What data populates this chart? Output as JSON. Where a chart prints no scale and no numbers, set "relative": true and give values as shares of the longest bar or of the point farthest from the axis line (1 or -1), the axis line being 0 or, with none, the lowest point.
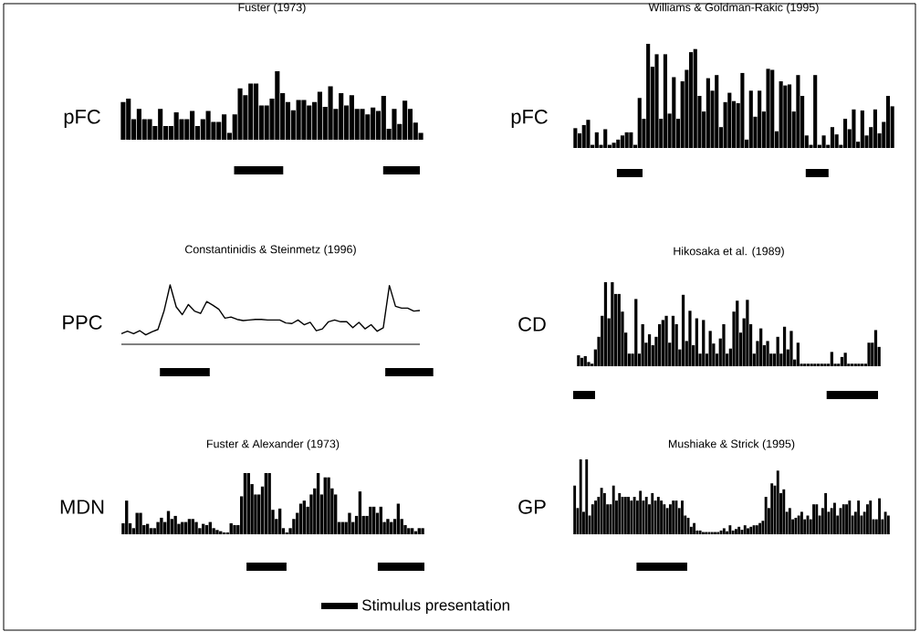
{
  "chart_data": [
    {
      "type": "bar",
      "title": "Fuster (1973)",
      "ylabel": "pFC",
      "relative": true,
      "categories": [
        null,
        null,
        null,
        null,
        null,
        null,
        null,
        null,
        null,
        null,
        null,
        null,
        null,
        null,
        null,
        null,
        null,
        null,
        null,
        null,
        null,
        null,
        null,
        null,
        null,
        null,
        null,
        null,
        null,
        null,
        null,
        null,
        null,
        null,
        null,
        null,
        null,
        null,
        null,
        null,
        null,
        null,
        null,
        null,
        null,
        null,
        null,
        null,
        null,
        null,
        null,
        null,
        null,
        null,
        null,
        null,
        null
      ],
      "series": [
        {
          "color": "#000000",
          "values": [
            0.55,
            0.6,
            0.3,
            0.45,
            0.3,
            0.3,
            0.2,
            0.45,
            0.2,
            0.2,
            0.4,
            0.3,
            0.3,
            0.42,
            0.2,
            0.3,
            0.42,
            0.26,
            0.26,
            0.37,
            0.1,
            0.37,
            0.75,
            0.65,
            0.82,
            0.82,
            0.5,
            0.5,
            0.6,
            1.0,
            0.68,
            0.55,
            0.43,
            0.58,
            0.58,
            0.5,
            0.55,
            0.7,
            0.48,
            0.78,
            0.45,
            0.68,
            0.5,
            0.65,
            0.45,
            0.45,
            0.37,
            0.47,
            0.42,
            0.64,
            0.16,
            0.45,
            0.23,
            0.57,
            0.45,
            0.25,
            0.1
          ]
        }
      ]
    },
    {
      "type": "bar",
      "title": "Williams & Goldman-Rakic (1995)",
      "ylabel": "pFC",
      "relative": true,
      "categories": [
        null,
        null,
        null,
        null,
        null,
        null,
        null,
        null,
        null,
        null,
        null,
        null,
        null,
        null,
        null,
        null,
        null,
        null,
        null,
        null,
        null,
        null,
        null,
        null,
        null,
        null,
        null,
        null,
        null,
        null,
        null,
        null,
        null,
        null,
        null,
        null,
        null,
        null,
        null,
        null,
        null,
        null,
        null,
        null,
        null,
        null,
        null,
        null,
        null,
        null,
        null,
        null,
        null,
        null,
        null,
        null,
        null,
        null,
        null,
        null,
        null,
        null,
        null,
        null,
        null,
        null,
        null,
        null,
        null,
        null,
        null,
        null,
        null,
        null,
        null
      ],
      "series": [
        {
          "color": "#000000",
          "values": [
            0.19,
            0.14,
            0.22,
            0.27,
            0.03,
            0.15,
            0.03,
            0.18,
            0.03,
            0.05,
            0.08,
            0.12,
            0.15,
            0.15,
            0.03,
            0.48,
            0.28,
            1.0,
            0.78,
            0.9,
            0.28,
            0.9,
            0.33,
            0.68,
            0.28,
            0.64,
            0.75,
            0.92,
            0.95,
            0.5,
            0.35,
            0.67,
            0.55,
            0.7,
            0.2,
            0.44,
            0.53,
            0.45,
            0.43,
            0.72,
            0.08,
            0.55,
            0.3,
            0.55,
            0.35,
            0.76,
            0.75,
            0.16,
            0.64,
            0.6,
            0.61,
            0.35,
            0.7,
            0.5,
            0.12,
            0.03,
            0.7,
            0.03,
            0.12,
            0.03,
            0.2,
            0.13,
            0.03,
            0.28,
            0.18,
            0.37,
            0.06,
            0.36,
            0.12,
            0.2,
            0.37,
            0.14,
            0.25,
            0.5,
            0.4
          ]
        }
      ]
    },
    {
      "type": "line",
      "title": "Constantinidis & Steinmetz (1996)",
      "ylabel": "PPC",
      "relative": true,
      "categories": [
        null,
        null,
        null,
        null,
        null,
        null,
        null,
        null,
        null,
        null,
        null,
        null,
        null,
        null,
        null,
        null,
        null,
        null,
        null,
        null,
        null,
        null,
        null,
        null,
        null,
        null,
        null,
        null,
        null,
        null,
        null,
        null,
        null,
        null,
        null,
        null,
        null,
        null,
        null,
        null,
        null,
        null,
        null,
        null,
        null,
        null,
        null,
        null,
        null,
        null
      ],
      "series": [
        {
          "color": "#000000",
          "values": [
            0.18,
            0.22,
            0.18,
            0.23,
            0.16,
            0.21,
            0.25,
            0.56,
            1.0,
            0.63,
            0.5,
            0.67,
            0.56,
            0.52,
            0.72,
            0.66,
            0.59,
            0.44,
            0.46,
            0.42,
            0.4,
            0.41,
            0.42,
            0.42,
            0.41,
            0.41,
            0.41,
            0.36,
            0.35,
            0.41,
            0.33,
            0.37,
            0.23,
            0.26,
            0.38,
            0.41,
            0.38,
            0.38,
            0.28,
            0.37,
            0.26,
            0.33,
            0.22,
            0.28,
            0.99,
            0.64,
            0.61,
            0.61,
            0.56,
            0.57
          ]
        }
      ]
    },
    {
      "type": "bar",
      "title": "Hikosaka et al. (1989)",
      "ylabel": "CD",
      "relative": true,
      "categories": [
        null,
        null,
        null,
        null,
        null,
        null,
        null,
        null,
        null,
        null,
        null,
        null,
        null,
        null,
        null,
        null,
        null,
        null,
        null,
        null,
        null,
        null,
        null,
        null,
        null,
        null,
        null,
        null,
        null,
        null,
        null,
        null,
        null,
        null,
        null,
        null,
        null,
        null,
        null,
        null,
        null,
        null,
        null,
        null,
        null,
        null,
        null,
        null,
        null,
        null,
        null,
        null,
        null,
        null,
        null,
        null,
        null,
        null,
        null,
        null,
        null,
        null,
        null,
        null,
        null,
        null,
        null,
        null,
        null,
        null,
        null,
        null,
        null,
        null,
        null,
        null,
        null,
        null,
        null,
        null,
        null,
        null,
        null,
        null,
        null,
        null,
        null,
        null,
        null,
        null
      ],
      "series": [
        {
          "color": "#000000",
          "values": [
            0.13,
            0.1,
            0.12,
            0.05,
            0.03,
            0.2,
            0.35,
            0.6,
            1.0,
            0.57,
            1.0,
            0.86,
            0.86,
            0.65,
            0.4,
            0.15,
            0.15,
            0.8,
            0.15,
            0.5,
            0.28,
            0.38,
            0.25,
            0.35,
            0.5,
            0.55,
            0.6,
            0.28,
            0.6,
            0.5,
            0.2,
            0.85,
            0.3,
            0.66,
            0.25,
            0.57,
            0.15,
            0.55,
            0.15,
            0.42,
            0.27,
            0.15,
            0.33,
            0.5,
            0.15,
            0.21,
            0.65,
            0.78,
            0.4,
            0.57,
            0.79,
            0.5,
            0.15,
            0.3,
            0.45,
            0.25,
            0.3,
            0.15,
            0.15,
            0.35,
            0.15,
            0.47,
            0.2,
            0.42,
            0.08,
            0.28,
            0.03,
            0.03,
            0.03,
            0.03,
            0.03,
            0.03,
            0.03,
            0.03,
            0.03,
            0.17,
            0.03,
            0.03,
            0.11,
            0.16,
            0.03,
            0.03,
            0.03,
            0.03,
            0.03,
            0.03,
            0.28,
            0.28,
            0.43,
            0.23
          ]
        }
      ]
    },
    {
      "type": "bar",
      "title": "Fuster & Alexander (1973)",
      "ylabel": "MDN",
      "relative": true,
      "categories": [
        null,
        null,
        null,
        null,
        null,
        null,
        null,
        null,
        null,
        null,
        null,
        null,
        null,
        null,
        null,
        null,
        null,
        null,
        null,
        null,
        null,
        null,
        null,
        null,
        null,
        null,
        null,
        null,
        null,
        null,
        null,
        null,
        null,
        null,
        null,
        null,
        null,
        null,
        null,
        null,
        null,
        null,
        null,
        null,
        null,
        null,
        null,
        null,
        null,
        null,
        null,
        null,
        null,
        null,
        null,
        null,
        null,
        null,
        null,
        null,
        null,
        null,
        null,
        null,
        null,
        null,
        null,
        null,
        null,
        null,
        null,
        null,
        null,
        null,
        null,
        null,
        null,
        null,
        null,
        null,
        null,
        null,
        null,
        null,
        null,
        null,
        null
      ],
      "series": [
        {
          "color": "#000000",
          "values": [
            0.18,
            0.55,
            0.18,
            0.1,
            0.35,
            0.35,
            0.15,
            0.17,
            0.1,
            0.1,
            0.2,
            0.27,
            0.2,
            0.38,
            0.25,
            0.3,
            0.17,
            0.2,
            0.2,
            0.25,
            0.25,
            0.2,
            0.1,
            0.17,
            0.15,
            0.2,
            0.1,
            0.07,
            0.05,
            0.03,
            0.03,
            0.18,
            0.15,
            0.15,
            0.62,
            1.0,
            1.0,
            0.82,
            0.65,
            0.65,
            0.78,
            1.0,
            1.0,
            0.4,
            0.25,
            0.42,
            0.1,
            0.03,
            0.1,
            0.25,
            0.35,
            0.5,
            0.55,
            0.45,
            0.65,
            0.75,
            1.0,
            0.65,
            0.93,
            0.93,
            0.75,
            0.65,
            0.2,
            0.2,
            0.2,
            0.35,
            0.2,
            0.3,
            0.7,
            0.3,
            0.3,
            0.45,
            0.45,
            0.35,
            0.45,
            0.2,
            0.25,
            0.2,
            0.25,
            0.5,
            0.25,
            0.15,
            0.1,
            0.1,
            0.05,
            0.1,
            0.1
          ]
        }
      ]
    },
    {
      "type": "bar",
      "title": "Mushiake & Strick (1995)",
      "ylabel": "GP",
      "relative": true,
      "categories": [
        null,
        null,
        null,
        null,
        null,
        null,
        null,
        null,
        null,
        null,
        null,
        null,
        null,
        null,
        null,
        null,
        null,
        null,
        null,
        null,
        null,
        null,
        null,
        null,
        null,
        null,
        null,
        null,
        null,
        null,
        null,
        null,
        null,
        null,
        null,
        null,
        null,
        null,
        null,
        null,
        null,
        null,
        null,
        null,
        null,
        null,
        null,
        null,
        null,
        null,
        null,
        null,
        null,
        null,
        null,
        null,
        null,
        null,
        null,
        null,
        null,
        null,
        null,
        null,
        null,
        null,
        null,
        null,
        null,
        null,
        null,
        null,
        null,
        null,
        null,
        null,
        null,
        null,
        null,
        null,
        null,
        null,
        null,
        null,
        null,
        null,
        null,
        null,
        null,
        null,
        null,
        null,
        null,
        null,
        null,
        null,
        null,
        null,
        null,
        null,
        null,
        null,
        null,
        null,
        null,
        null
      ],
      "series": [
        {
          "color": "#000000",
          "values": [
            0.65,
            0.35,
            1.0,
            0.3,
            1.0,
            0.25,
            0.4,
            0.45,
            0.5,
            0.62,
            0.55,
            0.4,
            0.4,
            0.65,
            0.45,
            0.55,
            0.5,
            0.5,
            0.5,
            0.45,
            0.5,
            0.45,
            0.58,
            0.45,
            0.5,
            0.4,
            0.55,
            0.45,
            0.5,
            0.45,
            0.4,
            0.35,
            0.4,
            0.45,
            0.45,
            0.35,
            0.45,
            0.25,
            0.22,
            0.1,
            0.15,
            0.05,
            0.05,
            0.03,
            0.03,
            0.03,
            0.03,
            0.03,
            0.03,
            0.05,
            0.08,
            0.04,
            0.12,
            0.05,
            0.07,
            0.1,
            0.06,
            0.12,
            0.08,
            0.1,
            0.12,
            0.12,
            0.15,
            0.18,
            0.5,
            0.35,
            0.68,
            0.65,
            0.85,
            0.55,
            0.6,
            0.3,
            0.35,
            0.2,
            0.22,
            0.25,
            0.3,
            0.2,
            0.25,
            0.2,
            0.4,
            0.4,
            0.25,
            0.35,
            0.55,
            0.3,
            0.35,
            0.42,
            0.25,
            0.35,
            0.4,
            0.4,
            0.45,
            0.25,
            0.3,
            0.45,
            0.25,
            0.3,
            0.4,
            0.45,
            0.2,
            0.2,
            0.48,
            0.2,
            0.3,
            0.25
          ]
        }
      ],
      "annotations": [
        "Stimulus presentation"
      ]
    }
  ]
}
